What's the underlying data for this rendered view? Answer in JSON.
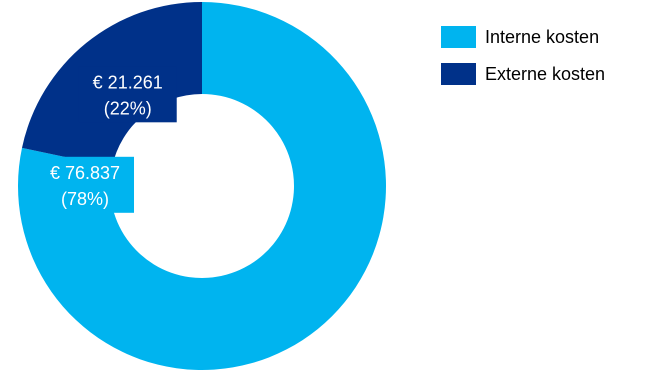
{
  "chart_data": {
    "type": "pie",
    "variant": "donut",
    "categories": [
      "Interne kosten",
      "Externe kosten"
    ],
    "values": [
      76837,
      21261
    ],
    "percentages": [
      78,
      22
    ],
    "value_labels": [
      "€ 76.837",
      "€ 21.261"
    ],
    "percent_labels": [
      "(78%)",
      "(22%)"
    ],
    "colors": [
      "#00b4ef",
      "#003189"
    ],
    "legend_position": "top-right",
    "start_angle": "12 o'clock",
    "direction": "clockwise"
  },
  "legend": {
    "items": [
      {
        "label": "Interne kosten",
        "color": "#00b4ef"
      },
      {
        "label": "Externe kosten",
        "color": "#003189"
      }
    ]
  }
}
